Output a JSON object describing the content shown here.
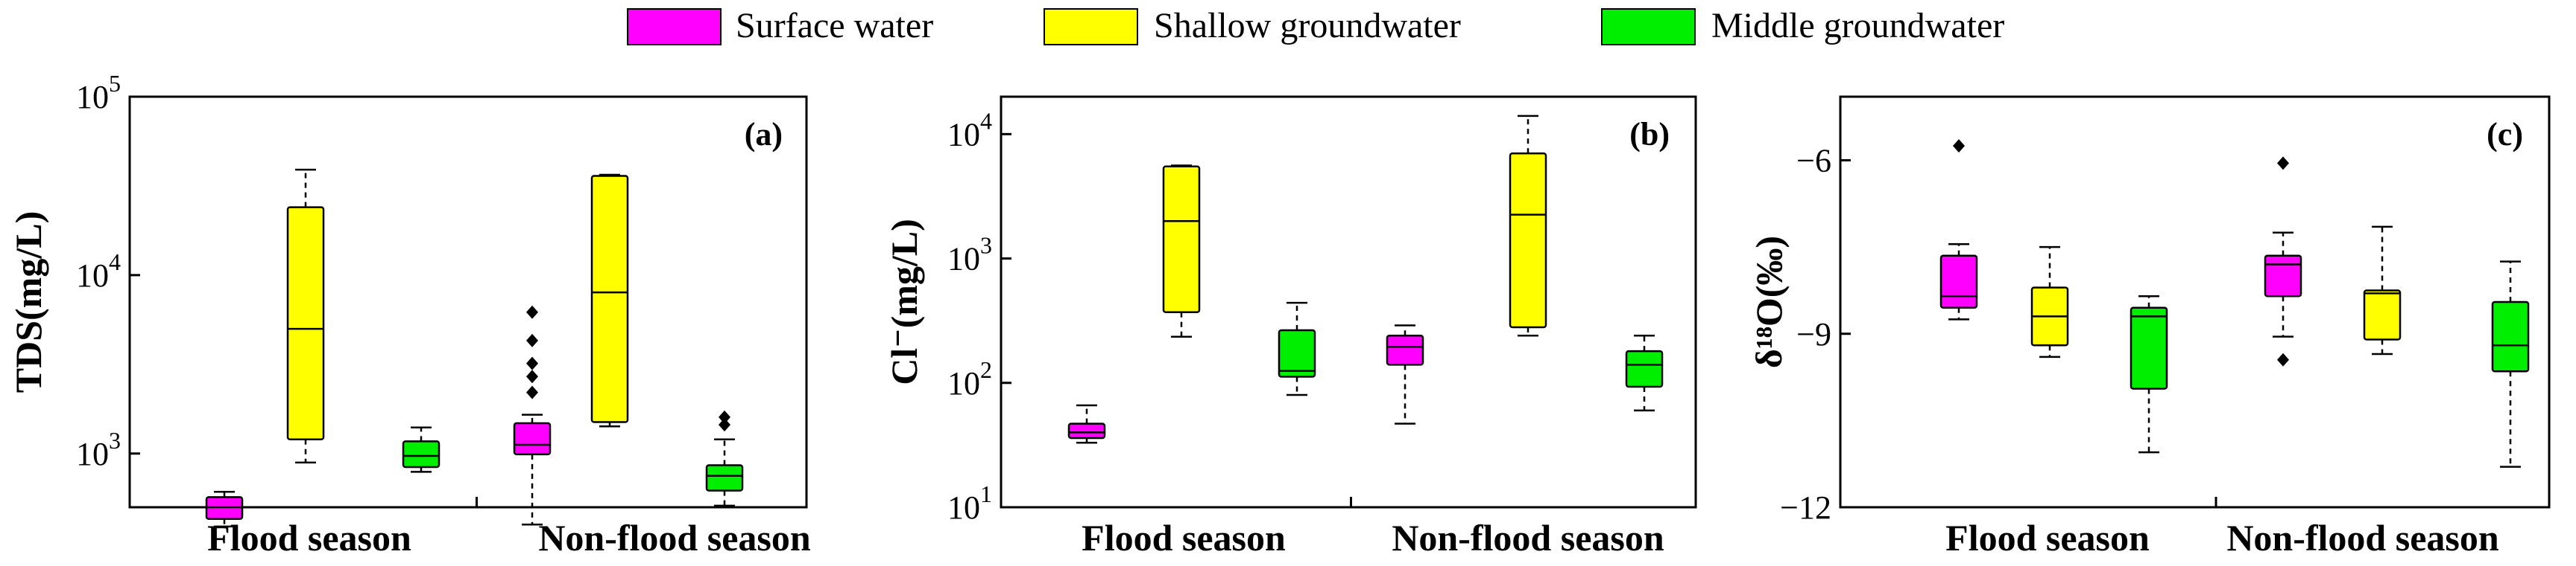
{
  "legend": [
    {
      "name": "Surface water",
      "color": "#ff00ff"
    },
    {
      "name": "Shallow groundwater",
      "color": "#ffff00"
    },
    {
      "name": "Middle groundwater",
      "color": "#00ee00"
    }
  ],
  "chart_data": [
    {
      "type": "box",
      "panel_label": "(a)",
      "ylabel": "TDS(mg/L)",
      "yscale": "log",
      "ylim": [
        500,
        100000
      ],
      "yticks": [
        {
          "value": 1000,
          "base": "10",
          "exp": "3"
        },
        {
          "value": 10000,
          "base": "10",
          "exp": "4"
        },
        {
          "value": 100000,
          "base": "10",
          "exp": "5"
        }
      ],
      "categories": [
        "Flood season",
        "Non-flood season"
      ],
      "boxes": [
        {
          "category": "Flood season",
          "series": "Surface water",
          "whisker_low": 390,
          "q1": 430,
          "median": 500,
          "q3": 570,
          "whisker_high": 610,
          "outliers": []
        },
        {
          "category": "Flood season",
          "series": "Shallow groundwater",
          "whisker_low": 890,
          "q1": 1200,
          "median": 5000,
          "q3": 24000,
          "whisker_high": 39000,
          "outliers": []
        },
        {
          "category": "Flood season",
          "series": "Middle groundwater",
          "whisker_low": 790,
          "q1": 840,
          "median": 970,
          "q3": 1170,
          "whisker_high": 1400,
          "outliers": []
        },
        {
          "category": "Non-flood season",
          "series": "Surface water",
          "whisker_low": 400,
          "q1": 990,
          "median": 1120,
          "q3": 1480,
          "whisker_high": 1650,
          "outliers": [
            2200,
            2700,
            3200,
            4300,
            6200
          ]
        },
        {
          "category": "Non-flood season",
          "series": "Shallow groundwater",
          "whisker_low": 1420,
          "q1": 1500,
          "median": 8000,
          "q3": 36000,
          "whisker_high": 36500,
          "outliers": []
        },
        {
          "category": "Non-flood season",
          "series": "Middle groundwater",
          "whisker_low": 510,
          "q1": 620,
          "median": 750,
          "q3": 860,
          "whisker_high": 1200,
          "outliers": [
            1450,
            1600
          ]
        }
      ]
    },
    {
      "type": "box",
      "panel_label": "(b)",
      "ylabel": "Cl⁻(mg/L)",
      "yscale": "log",
      "ylim": [
        10,
        20000
      ],
      "yticks": [
        {
          "value": 10,
          "base": "10",
          "exp": "1"
        },
        {
          "value": 100,
          "base": "10",
          "exp": "2"
        },
        {
          "value": 1000,
          "base": "10",
          "exp": "3"
        },
        {
          "value": 10000,
          "base": "10",
          "exp": "4"
        }
      ],
      "categories": [
        "Flood season",
        "Non-flood season"
      ],
      "boxes": [
        {
          "category": "Flood season",
          "series": "Surface water",
          "whisker_low": 33,
          "q1": 36,
          "median": 40,
          "q3": 47,
          "whisker_high": 66,
          "outliers": []
        },
        {
          "category": "Flood season",
          "series": "Shallow groundwater",
          "whisker_low": 235,
          "q1": 370,
          "median": 2000,
          "q3": 5500,
          "whisker_high": 5600,
          "outliers": []
        },
        {
          "category": "Flood season",
          "series": "Middle groundwater",
          "whisker_low": 80,
          "q1": 112,
          "median": 125,
          "q3": 265,
          "whisker_high": 440,
          "outliers": []
        },
        {
          "category": "Non-flood season",
          "series": "Surface water",
          "whisker_low": 47,
          "q1": 140,
          "median": 195,
          "q3": 240,
          "whisker_high": 290,
          "outliers": []
        },
        {
          "category": "Non-flood season",
          "series": "Shallow groundwater",
          "whisker_low": 240,
          "q1": 280,
          "median": 2250,
          "q3": 7000,
          "whisker_high": 14000,
          "outliers": []
        },
        {
          "category": "Non-flood season",
          "series": "Middle groundwater",
          "whisker_low": 60,
          "q1": 93,
          "median": 140,
          "q3": 180,
          "whisker_high": 240,
          "outliers": []
        }
      ]
    },
    {
      "type": "box",
      "panel_label": "(c)",
      "ylabel": "δ¹⁸O(‰)",
      "yscale": "linear",
      "ylim": [
        -12,
        -4.9
      ],
      "yticks": [
        {
          "value": -12,
          "label": "−12"
        },
        {
          "value": -9,
          "label": "−9"
        },
        {
          "value": -6,
          "label": "−6"
        }
      ],
      "categories": [
        "Flood season",
        "Non-flood season"
      ],
      "boxes": [
        {
          "category": "Flood season",
          "series": "Surface water",
          "whisker_low": -8.75,
          "q1": -8.55,
          "median": -8.35,
          "q3": -7.65,
          "whisker_high": -7.45,
          "outliers": [
            -5.75
          ]
        },
        {
          "category": "Flood season",
          "series": "Shallow groundwater",
          "whisker_low": -9.4,
          "q1": -9.2,
          "median": -8.7,
          "q3": -8.2,
          "whisker_high": -7.5,
          "outliers": []
        },
        {
          "category": "Flood season",
          "series": "Middle groundwater",
          "whisker_low": -11.05,
          "q1": -9.95,
          "median": -8.7,
          "q3": -8.55,
          "whisker_high": -8.35,
          "outliers": []
        },
        {
          "category": "Non-flood season",
          "series": "Surface water",
          "whisker_low": -9.05,
          "q1": -8.35,
          "median": -7.8,
          "q3": -7.65,
          "whisker_high": -7.25,
          "outliers": [
            -6.05,
            -9.45
          ]
        },
        {
          "category": "Non-flood season",
          "series": "Shallow groundwater",
          "whisker_low": -9.35,
          "q1": -9.1,
          "median": -8.3,
          "q3": -8.25,
          "whisker_high": -7.15,
          "outliers": []
        },
        {
          "category": "Non-flood season",
          "series": "Middle groundwater",
          "whisker_low": -11.3,
          "q1": -9.65,
          "median": -9.2,
          "q3": -8.45,
          "whisker_high": -7.75,
          "outliers": []
        }
      ]
    }
  ]
}
